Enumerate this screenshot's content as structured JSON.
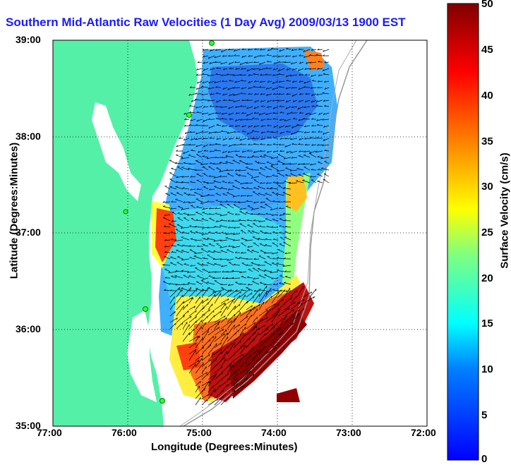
{
  "title": "Southern Mid-Atlantic Raw Velocities (1 Day Avg) 2009/03/13 1900 EST",
  "x_axis": {
    "label": "Longitude (Degrees:Minutes)",
    "ticks": [
      "77:00",
      "76:00",
      "75:00",
      "74:00",
      "73:00",
      "72:00"
    ]
  },
  "y_axis": {
    "label": "Latitude (Degrees:Minutes)",
    "ticks": [
      "39:00",
      "38:00",
      "37:00",
      "36:00",
      "35:00"
    ]
  },
  "colorbar": {
    "label": "Surface Velocity (cm/s)",
    "ticks": [
      "50",
      "45",
      "40",
      "35",
      "30",
      "25",
      "20",
      "15",
      "10",
      "5",
      "0"
    ],
    "range": [
      0,
      50
    ],
    "colormap": "jet"
  },
  "map": {
    "extent": {
      "lon": [
        -77,
        -72
      ],
      "lat": [
        35,
        39
      ]
    },
    "land_color": "#55f0a8",
    "ocean_color": "#ffffff",
    "grid": "dotted",
    "radar_sites": 5
  }
}
